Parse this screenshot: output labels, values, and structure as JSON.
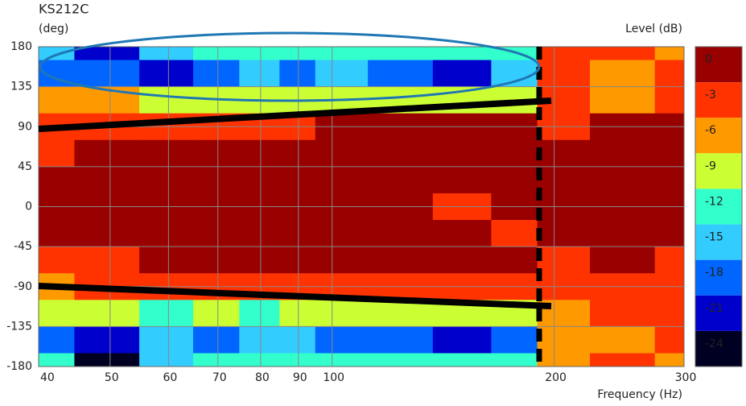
{
  "chart_data": {
    "type": "heatmap",
    "title": "KS212C",
    "y_unit": "(deg)",
    "colorbar_title": "Level (dB)",
    "x_label": "Frequency (Hz)",
    "log_x": true,
    "grid": true,
    "xlim": [
      40,
      300
    ],
    "xticks": [
      40,
      50,
      60,
      70,
      80,
      90,
      100,
      200,
      300
    ],
    "ylim": [
      -180,
      180
    ],
    "yticks": [
      180,
      135,
      90,
      45,
      0,
      -45,
      -90,
      -135,
      -180
    ],
    "x": [
      40,
      50,
      60,
      70,
      80,
      90,
      100,
      125,
      150,
      180,
      200,
      250,
      300
    ],
    "y": [
      180,
      150,
      120,
      90,
      60,
      30,
      0,
      -30,
      -60,
      -90,
      -120,
      -150,
      -180
    ],
    "z": [
      [
        -15,
        -21,
        -15,
        -12,
        -12,
        -12,
        -12,
        -12,
        -12,
        -12,
        -3,
        -3,
        -6
      ],
      [
        -18,
        -18,
        -21,
        -18,
        -15,
        -18,
        -15,
        -18,
        -21,
        -15,
        -3,
        -6,
        -3
      ],
      [
        -6,
        -6,
        -9,
        -9,
        -9,
        -9,
        -9,
        -9,
        -9,
        -9,
        -3,
        -6,
        -3
      ],
      [
        -3,
        -3,
        -3,
        -3,
        -3,
        -3,
        0,
        0,
        0,
        0,
        -3,
        0,
        0
      ],
      [
        -3,
        0,
        0,
        0,
        0,
        0,
        0,
        0,
        0,
        0,
        0,
        0,
        0
      ],
      [
        0,
        0,
        0,
        0,
        0,
        0,
        0,
        0,
        0,
        0,
        0,
        0,
        0
      ],
      [
        0,
        0,
        0,
        0,
        0,
        0,
        0,
        0,
        -3,
        0,
        0,
        0,
        0
      ],
      [
        0,
        0,
        0,
        0,
        0,
        0,
        0,
        0,
        0,
        -3,
        0,
        0,
        0
      ],
      [
        -3,
        -3,
        0,
        0,
        0,
        0,
        0,
        0,
        0,
        0,
        -3,
        0,
        -3
      ],
      [
        -6,
        -3,
        -3,
        -3,
        -3,
        -3,
        -3,
        -3,
        -3,
        -3,
        -3,
        -3,
        -3
      ],
      [
        -9,
        -9,
        -12,
        -9,
        -12,
        -9,
        -9,
        -9,
        -9,
        -9,
        -6,
        -3,
        -3
      ],
      [
        -18,
        -21,
        -15,
        -18,
        -15,
        -15,
        -18,
        -18,
        -21,
        -18,
        -6,
        -6,
        -3
      ],
      [
        -12,
        -24,
        -15,
        -12,
        -12,
        -12,
        -12,
        -12,
        -12,
        -12,
        -6,
        -3,
        -6
      ]
    ],
    "levels": [
      0,
      -3,
      -6,
      -9,
      -12,
      -15,
      -18,
      -21,
      -24
    ],
    "level_colors": [
      "#990000",
      "#ff3300",
      "#ff9900",
      "#ccff33",
      "#33ffcc",
      "#33ccff",
      "#0066ff",
      "#0000cc",
      "#000022"
    ]
  }
}
